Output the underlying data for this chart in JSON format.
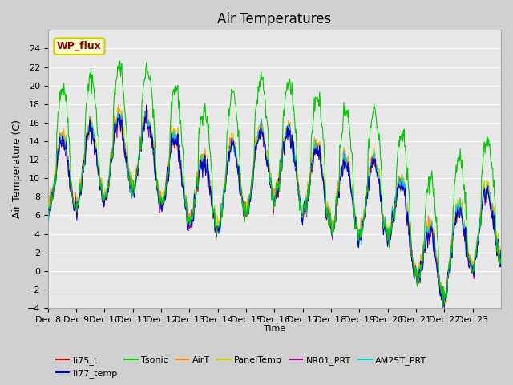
{
  "title": "Air Temperatures",
  "ylabel": "Air Temperature (C)",
  "xlabel": "Time",
  "ylim": [
    -4,
    26
  ],
  "yticks": [
    -4,
    -2,
    0,
    2,
    4,
    6,
    8,
    10,
    12,
    14,
    16,
    18,
    20,
    22,
    24
  ],
  "xtick_positions": [
    0,
    1,
    2,
    3,
    4,
    5,
    6,
    7,
    8,
    9,
    10,
    11,
    12,
    13,
    14,
    15
  ],
  "xtick_labels": [
    "Dec 8",
    "Dec 9",
    "Dec 10",
    "Dec 11",
    "Dec 12",
    "Dec 13",
    "Dec 14",
    "Dec 15",
    "Dec 16",
    "Dec 17",
    "Dec 18",
    "Dec 19",
    "Dec 20",
    "Dec 21",
    "Dec 22",
    "Dec 23"
  ],
  "series_colors": {
    "li75_t": "#cc0000",
    "li77_temp": "#0000cc",
    "Tsonic": "#00cc00",
    "AirT": "#ff8800",
    "PanelTemp": "#cccc00",
    "NR01_PRT": "#aa00aa",
    "AM25T_PRT": "#00cccc"
  },
  "plot_bg_color": "#e8e8e8",
  "fig_bg_color": "#d0d0d0",
  "legend_box_facecolor": "#ffffcc",
  "legend_box_edgecolor": "#cccc00",
  "legend_text_color": "#880000",
  "annotation_text": "WP_flux",
  "grid_color": "#ffffff",
  "title_fontsize": 12,
  "n_days": 16,
  "n_per_day": 48
}
